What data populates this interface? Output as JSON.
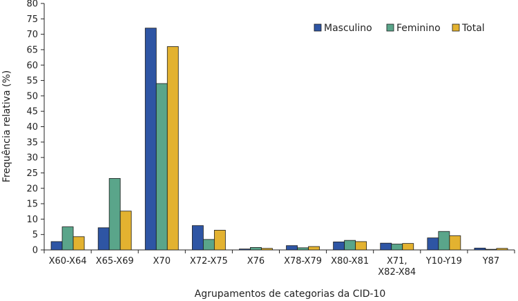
{
  "chart_data": {
    "type": "bar",
    "title": "",
    "xlabel": "Agrupamentos de categorias da CID-10",
    "ylabel": "Frequência relativa (%)",
    "ylim": [
      0,
      80
    ],
    "yticks": [
      0,
      5,
      10,
      15,
      20,
      25,
      30,
      35,
      40,
      45,
      50,
      55,
      60,
      65,
      70,
      75,
      80
    ],
    "grid": false,
    "legend_position": "top-right",
    "categories": [
      "X60-X64",
      "X65-X69",
      "X70",
      "X72-X75",
      "X76",
      "X78-X79",
      "X80-X81",
      "X71,\nX82-X84",
      "Y10-Y19",
      "Y87"
    ],
    "series": [
      {
        "name": "Masculino",
        "color": "#2e55a4",
        "values": [
          2.7,
          7.2,
          72.0,
          7.9,
          0.3,
          1.4,
          2.6,
          2.2,
          3.9,
          0.6
        ]
      },
      {
        "name": "Feminino",
        "color": "#5aa58a",
        "values": [
          7.5,
          23.2,
          54.0,
          3.4,
          0.8,
          0.7,
          3.1,
          1.9,
          6.0,
          0.2
        ]
      },
      {
        "name": "Total",
        "color": "#e3b230",
        "values": [
          4.3,
          12.6,
          66.0,
          6.4,
          0.5,
          1.1,
          2.7,
          2.1,
          4.6,
          0.5
        ]
      }
    ]
  }
}
